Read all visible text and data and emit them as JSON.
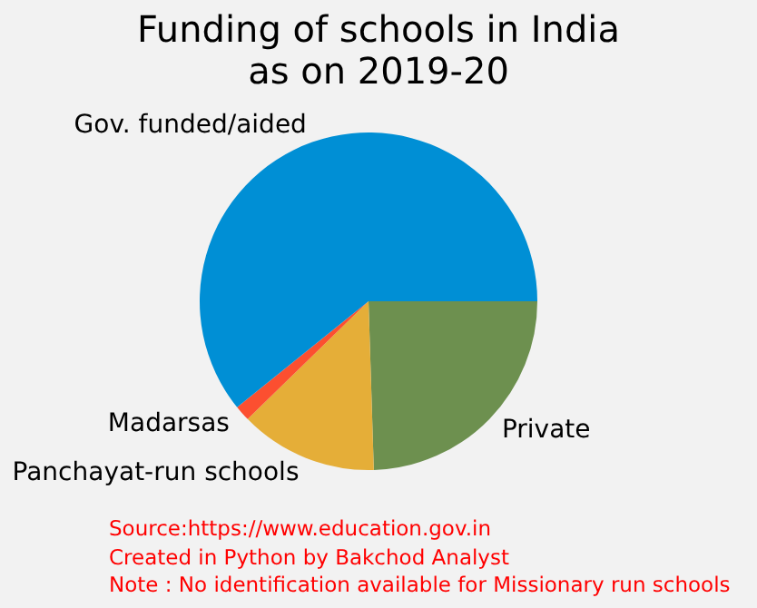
{
  "chart_data": {
    "type": "pie",
    "title": "Funding of schools in India\nas on 2019-20",
    "categories": [
      "Gov. funded/aided",
      "Madarsas",
      "Panchayat-run schools",
      "Private"
    ],
    "values": [
      60.8,
      1.5,
      13.2,
      24.5
    ],
    "colors": [
      "#008fd5",
      "#fc4f30",
      "#e5ae38",
      "#6d904f"
    ],
    "annotations": [
      "Source:https://www.education.gov.in",
      "Created in Python by Bakchod Analyst",
      "Note : No identification available for Missionary run schools"
    ]
  }
}
